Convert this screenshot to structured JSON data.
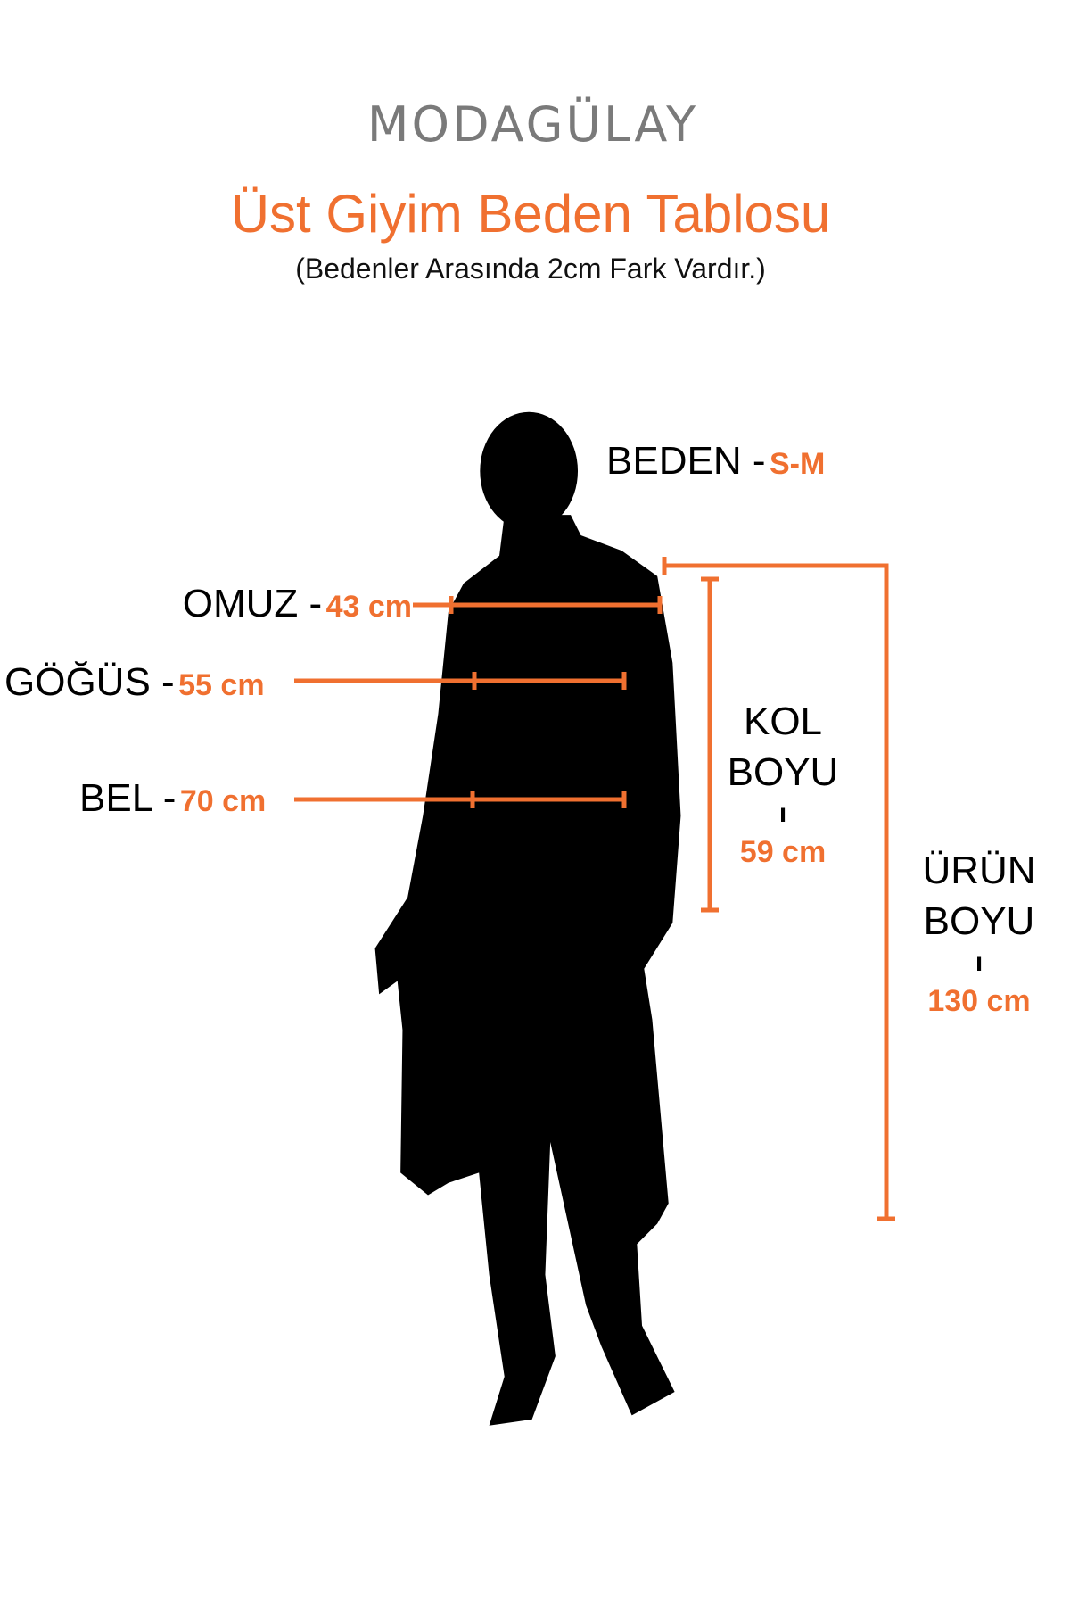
{
  "brand": {
    "logo_text": "MODAGÜLAY"
  },
  "header": {
    "title": "Üst Giyim Beden Tablosu",
    "subtitle": "(Bedenler Arasında 2cm Fark Vardır.)"
  },
  "colors": {
    "accent": "#f07030",
    "logo": "#7a7a7a",
    "silhouette": "#000000"
  },
  "size": {
    "label": "BEDEN -",
    "value": "S-M"
  },
  "measurements": {
    "shoulder": {
      "label": "OMUZ -",
      "value": "43 cm"
    },
    "chest": {
      "label": "GÖĞÜS -",
      "value": "55 cm"
    },
    "waist": {
      "label": "BEL -",
      "value": "70 cm"
    },
    "sleeve": {
      "label_line1": "KOL",
      "label_line2": "BOYU",
      "separator": "ı",
      "value": "59 cm"
    },
    "length": {
      "label_line1": "ÜRÜN",
      "label_line2": "BOYU",
      "separator": "ı",
      "value": "130 cm"
    }
  }
}
